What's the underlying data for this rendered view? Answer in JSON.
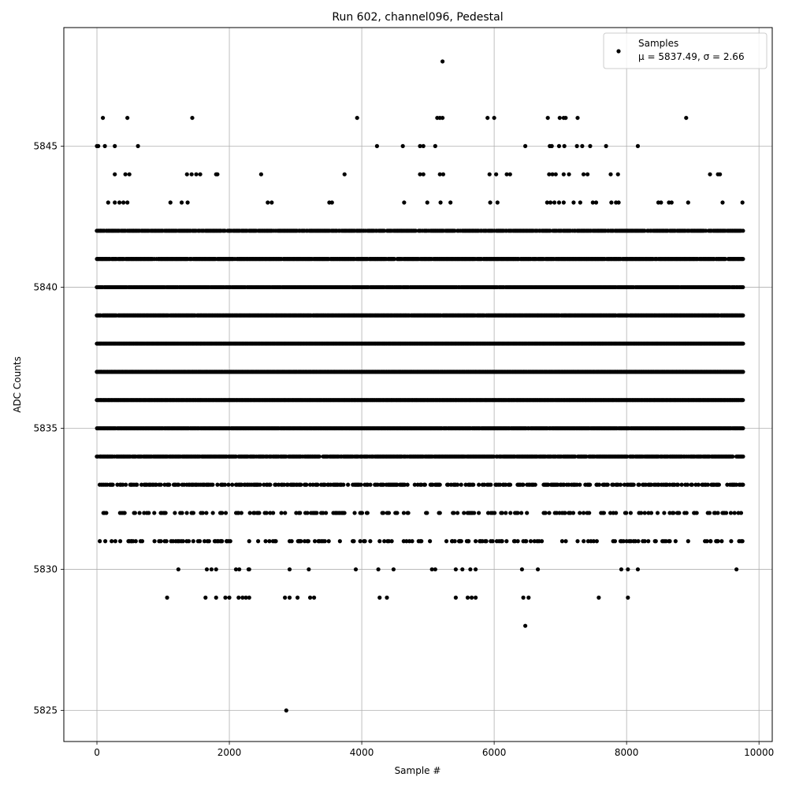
{
  "chart_data": {
    "type": "scatter",
    "title": "Run 602, channel096, Pedestal",
    "xlabel": "Sample #",
    "ylabel": "ADC Counts",
    "xlim": [
      -500,
      10200
    ],
    "ylim": [
      5823.9,
      5849.2
    ],
    "x_ticks": [
      0,
      2000,
      4000,
      6000,
      8000,
      10000
    ],
    "x_tick_labels": [
      "0",
      "2000",
      "4000",
      "6000",
      "8000",
      "10000"
    ],
    "y_ticks": [
      5825,
      5830,
      5835,
      5840,
      5845
    ],
    "y_tick_labels": [
      "5825",
      "5830",
      "5835",
      "5840",
      "5845"
    ],
    "grid": true,
    "legend_position": "top-right",
    "marker_color": "#000000",
    "series": [
      {
        "name": "Samples",
        "stats_label": "μ = 5837.49, σ = 2.66",
        "level_density": [
          {
            "y": 5842,
            "coverage": 0.85
          },
          {
            "y": 5841,
            "coverage": 0.93
          },
          {
            "y": 5840,
            "coverage": 0.97
          },
          {
            "y": 5839,
            "coverage": 0.98
          },
          {
            "y": 5838,
            "coverage": 1.0
          },
          {
            "y": 5837,
            "coverage": 1.0
          },
          {
            "y": 5836,
            "coverage": 1.0
          },
          {
            "y": 5835,
            "coverage": 0.97
          },
          {
            "y": 5834,
            "coverage": 0.88
          },
          {
            "y": 5833,
            "coverage": 0.5
          },
          {
            "y": 5832,
            "coverage": 0.25
          },
          {
            "y": 5831,
            "coverage": 0.16
          }
        ],
        "points": [
          [
            5220,
            5848
          ],
          [
            90,
            5846
          ],
          [
            460,
            5846
          ],
          [
            1440,
            5846
          ],
          [
            3930,
            5846
          ],
          [
            5140,
            5846
          ],
          [
            5180,
            5846
          ],
          [
            5220,
            5846
          ],
          [
            5900,
            5846
          ],
          [
            6000,
            5846
          ],
          [
            6810,
            5846
          ],
          [
            6990,
            5846
          ],
          [
            7050,
            5846
          ],
          [
            7080,
            5846
          ],
          [
            7260,
            5846
          ],
          [
            8900,
            5846
          ],
          [
            0,
            5845
          ],
          [
            20,
            5845
          ],
          [
            120,
            5845
          ],
          [
            270,
            5845
          ],
          [
            620,
            5845
          ],
          [
            4230,
            5845
          ],
          [
            4620,
            5845
          ],
          [
            4880,
            5845
          ],
          [
            4930,
            5845
          ],
          [
            5110,
            5845
          ],
          [
            6470,
            5845
          ],
          [
            6840,
            5845
          ],
          [
            6870,
            5845
          ],
          [
            6980,
            5845
          ],
          [
            7060,
            5845
          ],
          [
            7250,
            5845
          ],
          [
            7330,
            5845
          ],
          [
            7450,
            5845
          ],
          [
            7690,
            5845
          ],
          [
            8170,
            5845
          ],
          [
            270,
            5844
          ],
          [
            430,
            5844
          ],
          [
            490,
            5844
          ],
          [
            1360,
            5844
          ],
          [
            1430,
            5844
          ],
          [
            1500,
            5844
          ],
          [
            1560,
            5844
          ],
          [
            1800,
            5844
          ],
          [
            1820,
            5844
          ],
          [
            2480,
            5844
          ],
          [
            3740,
            5844
          ],
          [
            4880,
            5844
          ],
          [
            4930,
            5844
          ],
          [
            5180,
            5844
          ],
          [
            5230,
            5844
          ],
          [
            5930,
            5844
          ],
          [
            6030,
            5844
          ],
          [
            6190,
            5844
          ],
          [
            6240,
            5844
          ],
          [
            6830,
            5844
          ],
          [
            6880,
            5844
          ],
          [
            6930,
            5844
          ],
          [
            7050,
            5844
          ],
          [
            7130,
            5844
          ],
          [
            7350,
            5844
          ],
          [
            7410,
            5844
          ],
          [
            7760,
            5844
          ],
          [
            7870,
            5844
          ],
          [
            9260,
            5844
          ],
          [
            9380,
            5844
          ],
          [
            9410,
            5844
          ],
          [
            170,
            5843
          ],
          [
            270,
            5843
          ],
          [
            340,
            5843
          ],
          [
            400,
            5843
          ],
          [
            460,
            5843
          ],
          [
            1110,
            5843
          ],
          [
            1280,
            5843
          ],
          [
            1370,
            5843
          ],
          [
            2580,
            5843
          ],
          [
            2640,
            5843
          ],
          [
            3510,
            5843
          ],
          [
            3550,
            5843
          ],
          [
            4640,
            5843
          ],
          [
            4990,
            5843
          ],
          [
            5190,
            5843
          ],
          [
            5340,
            5843
          ],
          [
            5940,
            5843
          ],
          [
            6050,
            5843
          ],
          [
            6800,
            5843
          ],
          [
            6850,
            5843
          ],
          [
            6910,
            5843
          ],
          [
            6980,
            5843
          ],
          [
            7050,
            5843
          ],
          [
            7200,
            5843
          ],
          [
            7300,
            5843
          ],
          [
            7490,
            5843
          ],
          [
            7540,
            5843
          ],
          [
            7770,
            5843
          ],
          [
            7840,
            5843
          ],
          [
            7880,
            5843
          ],
          [
            8480,
            5843
          ],
          [
            8520,
            5843
          ],
          [
            8640,
            5843
          ],
          [
            8680,
            5843
          ],
          [
            8930,
            5843
          ],
          [
            9450,
            5843
          ],
          [
            9750,
            5843
          ],
          [
            520,
            5831
          ],
          [
            1220,
            5831
          ],
          [
            1240,
            5831
          ],
          [
            1670,
            5831
          ],
          [
            1960,
            5831
          ],
          [
            2300,
            5831
          ],
          [
            2660,
            5831
          ],
          [
            3050,
            5831
          ],
          [
            3390,
            5831
          ],
          [
            3670,
            5831
          ],
          [
            3880,
            5831
          ],
          [
            4270,
            5831
          ],
          [
            4390,
            5831
          ],
          [
            5030,
            5831
          ],
          [
            5370,
            5831
          ],
          [
            5470,
            5831
          ],
          [
            5610,
            5831
          ],
          [
            5720,
            5831
          ],
          [
            6040,
            5831
          ],
          [
            6120,
            5831
          ],
          [
            6440,
            5831
          ],
          [
            6470,
            5831
          ],
          [
            7260,
            5831
          ],
          [
            7550,
            5831
          ],
          [
            8000,
            5831
          ],
          [
            8040,
            5831
          ],
          [
            8740,
            5831
          ],
          [
            9270,
            5831
          ],
          [
            9580,
            5831
          ],
          [
            9700,
            5831
          ],
          [
            9750,
            5831
          ],
          [
            1230,
            5830
          ],
          [
            1660,
            5830
          ],
          [
            1730,
            5830
          ],
          [
            1800,
            5830
          ],
          [
            2100,
            5830
          ],
          [
            2150,
            5830
          ],
          [
            2290,
            5830
          ],
          [
            2300,
            5830
          ],
          [
            2910,
            5830
          ],
          [
            3200,
            5830
          ],
          [
            3910,
            5830
          ],
          [
            4250,
            5830
          ],
          [
            4480,
            5830
          ],
          [
            5060,
            5830
          ],
          [
            5110,
            5830
          ],
          [
            5420,
            5830
          ],
          [
            5520,
            5830
          ],
          [
            5640,
            5830
          ],
          [
            5720,
            5830
          ],
          [
            6420,
            5830
          ],
          [
            6660,
            5830
          ],
          [
            7920,
            5830
          ],
          [
            8020,
            5830
          ],
          [
            8170,
            5830
          ],
          [
            9660,
            5830
          ],
          [
            1060,
            5829
          ],
          [
            1640,
            5829
          ],
          [
            1800,
            5829
          ],
          [
            1940,
            5829
          ],
          [
            2000,
            5829
          ],
          [
            2140,
            5829
          ],
          [
            2200,
            5829
          ],
          [
            2250,
            5829
          ],
          [
            2300,
            5829
          ],
          [
            2840,
            5829
          ],
          [
            2910,
            5829
          ],
          [
            3030,
            5829
          ],
          [
            3220,
            5829
          ],
          [
            3280,
            5829
          ],
          [
            4270,
            5829
          ],
          [
            4380,
            5829
          ],
          [
            5420,
            5829
          ],
          [
            5600,
            5829
          ],
          [
            5660,
            5829
          ],
          [
            5720,
            5829
          ],
          [
            6440,
            5829
          ],
          [
            6520,
            5829
          ],
          [
            7580,
            5829
          ],
          [
            8020,
            5829
          ],
          [
            6470,
            5828
          ],
          [
            2860,
            5825
          ]
        ]
      }
    ]
  }
}
